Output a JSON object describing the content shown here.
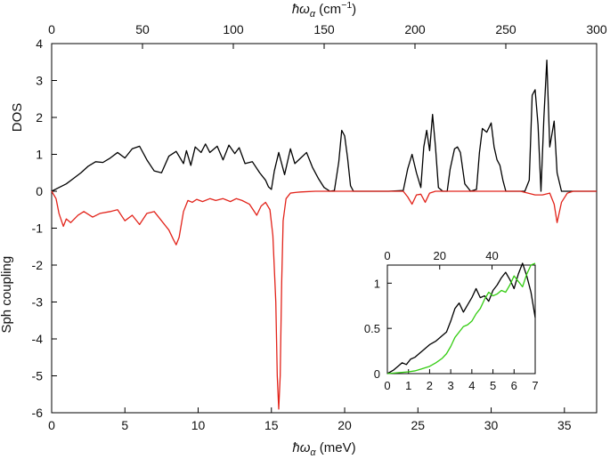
{
  "chart_data": [
    {
      "id": "main",
      "type": "line",
      "xlabel": "ħω_α (meV)",
      "xlabel_top": "ħω_α (cm^-1)",
      "ylabel_upper": "DOS",
      "ylabel_lower": "Sph coupling",
      "xlim": [
        0,
        37.2
      ],
      "ylim": [
        -6,
        4
      ],
      "top_xlim_cm": [
        0,
        300
      ],
      "x_ticks": [
        "0",
        "5",
        "10",
        "15",
        "20",
        "25",
        "30",
        "35"
      ],
      "x_ticks_top": [
        "0",
        "50",
        "100",
        "150",
        "200",
        "250",
        "300"
      ],
      "y_ticks": [
        "-6",
        "-5",
        "-4",
        "-3",
        "-2",
        "-1",
        "0",
        "1",
        "2",
        "3",
        "4"
      ],
      "grid": false,
      "series": [
        {
          "color": "#000000",
          "x": [
            0,
            0.5,
            1,
            1.5,
            2,
            2.5,
            3,
            3.5,
            4,
            4.5,
            5,
            5.5,
            6,
            6.5,
            7,
            7.5,
            8,
            8.5,
            9,
            9.2,
            9.5,
            9.8,
            10.2,
            10.5,
            10.8,
            11.3,
            11.7,
            12.1,
            12.5,
            12.8,
            13.2,
            13.7,
            14.2,
            14.6,
            14.8,
            15,
            15.2,
            15.5,
            15.9,
            16.3,
            16.6,
            17,
            17.4,
            17.8,
            18.2,
            18.6,
            19,
            19.3,
            19.6,
            19.8,
            20,
            20.2,
            20.4,
            20.6,
            21,
            22,
            23,
            24,
            24.3,
            24.6,
            24.9,
            25.2,
            25.4,
            25.6,
            25.8,
            26,
            26.2,
            26.4,
            26.7,
            27,
            27.2,
            27.5,
            27.7,
            27.9,
            28.2,
            28.6,
            29,
            29.2,
            29.4,
            29.7,
            30,
            30.2,
            30.4,
            30.6,
            30.8,
            31,
            31.3,
            31.8,
            32.3,
            32.6,
            32.8,
            33,
            33.2,
            33.4,
            33.6,
            33.8,
            34,
            34.3,
            34.5,
            34.8,
            35,
            35.2,
            35.4,
            35.6,
            36,
            37.2
          ],
          "y": [
            0,
            0.1,
            0.2,
            0.35,
            0.5,
            0.68,
            0.8,
            0.78,
            0.9,
            1.05,
            0.9,
            1.15,
            1.22,
            0.85,
            0.55,
            0.5,
            0.95,
            1.08,
            0.75,
            1.1,
            0.7,
            1.2,
            1.05,
            1.28,
            1.05,
            1.22,
            0.85,
            1.25,
            1.02,
            1.18,
            0.75,
            0.8,
            0.5,
            0.3,
            0.12,
            0.05,
            0.55,
            1.05,
            0.45,
            1.15,
            0.75,
            0.9,
            1.05,
            0.65,
            0.35,
            0.1,
            0,
            0.02,
            0.8,
            1.65,
            1.5,
            0.9,
            0.15,
            0,
            0,
            0,
            0,
            0.02,
            0.6,
            1,
            0.5,
            0.1,
            1.2,
            1.65,
            1.1,
            2.08,
            1.2,
            0.1,
            0,
            0,
            0.6,
            1.15,
            1.2,
            1.05,
            0.2,
            0,
            0.05,
            1.05,
            1.7,
            1.6,
            1.85,
            1.2,
            0.85,
            0.7,
            0.3,
            0,
            0,
            0,
            0,
            0.3,
            2.6,
            2.75,
            1.8,
            0,
            2,
            3.55,
            1.2,
            1.9,
            0.5,
            0,
            0,
            0,
            0,
            0,
            0,
            0
          ]
        },
        {
          "color": "#e2231a",
          "x": [
            0,
            0.3,
            0.5,
            0.8,
            1,
            1.3,
            1.8,
            2.2,
            2.8,
            3.3,
            4,
            4.5,
            5,
            5.5,
            6,
            6.5,
            7,
            7.5,
            8,
            8.3,
            8.5,
            8.7,
            9,
            9.3,
            9.6,
            9.9,
            10.3,
            10.8,
            11.2,
            11.7,
            12.2,
            12.6,
            13,
            13.5,
            14,
            14.3,
            14.6,
            14.9,
            15.1,
            15.3,
            15.4,
            15.5,
            15.6,
            15.7,
            15.8,
            16,
            16.3,
            16.7,
            17,
            18,
            19,
            20,
            21,
            22,
            23,
            24,
            24.3,
            24.6,
            24.9,
            25.2,
            25.5,
            25.8,
            26.2,
            27,
            29,
            30,
            31,
            32,
            33,
            33.5,
            34,
            34.3,
            34.5,
            34.8,
            35.2,
            35.6,
            36,
            37.2
          ],
          "y": [
            0,
            -0.2,
            -0.6,
            -0.95,
            -0.75,
            -0.85,
            -0.65,
            -0.55,
            -0.7,
            -0.6,
            -0.55,
            -0.5,
            -0.8,
            -0.65,
            -0.9,
            -0.6,
            -0.55,
            -0.8,
            -1.05,
            -1.3,
            -1.45,
            -1.25,
            -0.55,
            -0.25,
            -0.3,
            -0.22,
            -0.28,
            -0.2,
            -0.25,
            -0.2,
            -0.28,
            -0.2,
            -0.25,
            -0.35,
            -0.65,
            -0.4,
            -0.3,
            -0.5,
            -1.2,
            -3,
            -5,
            -5.9,
            -5,
            -2.5,
            -0.8,
            -0.2,
            -0.05,
            -0.03,
            -0.02,
            0,
            0,
            0,
            0,
            0,
            0,
            0,
            -0.15,
            -0.35,
            -0.1,
            -0.08,
            -0.3,
            -0.05,
            0,
            0,
            0,
            0,
            0,
            0,
            -0.1,
            -0.1,
            -0.05,
            -0.35,
            -0.85,
            -0.3,
            -0.05,
            0,
            0,
            0
          ]
        }
      ]
    },
    {
      "id": "inset",
      "type": "line",
      "xlim": [
        0,
        7
      ],
      "ylim": [
        0,
        1.2
      ],
      "top_xlim_cm": [
        0,
        56.5
      ],
      "x_ticks": [
        "0",
        "1",
        "2",
        "3",
        "4",
        "5",
        "6",
        "7"
      ],
      "x_ticks_top": [
        "0",
        "20",
        "40"
      ],
      "y_ticks": [
        "0",
        "0.5",
        "1"
      ],
      "grid": false,
      "series": [
        {
          "color": "#000000",
          "x": [
            0,
            0.3,
            0.5,
            0.7,
            0.9,
            1.1,
            1.3,
            1.5,
            1.7,
            2,
            2.3,
            2.6,
            2.8,
            3,
            3.2,
            3.4,
            3.6,
            3.8,
            4,
            4.2,
            4.4,
            4.6,
            4.8,
            5,
            5.2,
            5.4,
            5.6,
            5.8,
            6,
            6.2,
            6.4,
            6.6,
            6.8,
            7
          ],
          "y": [
            0,
            0.04,
            0.08,
            0.12,
            0.1,
            0.16,
            0.18,
            0.22,
            0.26,
            0.32,
            0.36,
            0.42,
            0.46,
            0.58,
            0.72,
            0.78,
            0.68,
            0.76,
            0.84,
            0.94,
            0.84,
            0.86,
            0.8,
            0.92,
            0.98,
            1.06,
            1.12,
            1.04,
            0.94,
            1.1,
            1.22,
            1.08,
            0.9,
            0.62
          ]
        },
        {
          "color": "#33cc11",
          "x": [
            0,
            0.5,
            1,
            1.3,
            1.6,
            2,
            2.3,
            2.6,
            2.8,
            3,
            3.2,
            3.4,
            3.6,
            3.8,
            4,
            4.2,
            4.4,
            4.6,
            4.8,
            5,
            5.2,
            5.4,
            5.6,
            5.8,
            6,
            6.2,
            6.4,
            6.6,
            6.8,
            7
          ],
          "y": [
            0,
            0.01,
            0.02,
            0.03,
            0.05,
            0.08,
            0.12,
            0.17,
            0.22,
            0.3,
            0.4,
            0.46,
            0.52,
            0.54,
            0.58,
            0.66,
            0.72,
            0.82,
            0.9,
            0.86,
            0.88,
            0.92,
            0.9,
            0.98,
            1.08,
            1.02,
            0.96,
            1.1,
            1.2,
            1.22
          ]
        }
      ]
    }
  ]
}
